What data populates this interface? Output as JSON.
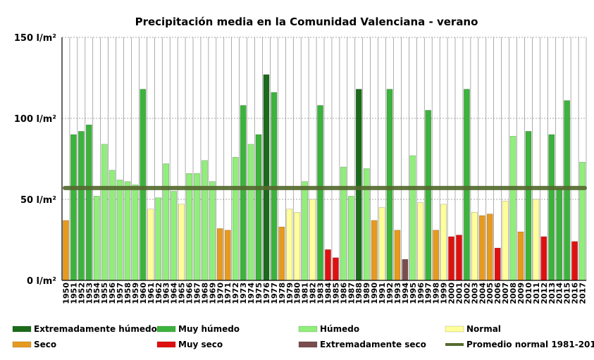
{
  "chart_data": {
    "type": "bar",
    "title": "Precipitación media en la Comunidad Valenciana - verano",
    "xlabel": "",
    "ylabel": "",
    "ylim": [
      0,
      150
    ],
    "y_ticks": [
      {
        "value": 0,
        "label": "0 l/m²"
      },
      {
        "value": 50,
        "label": "50 l/m²"
      },
      {
        "value": 100,
        "label": "100 l/m²"
      },
      {
        "value": 150,
        "label": "150 l/m²"
      }
    ],
    "grid": true,
    "legend_position": "bottom",
    "reference_line": {
      "name": "Promedio normal 1981-2010",
      "value": 57,
      "color": "#556b2f"
    },
    "category_colors": {
      "EH": "#1b6b1b",
      "MH": "#3cb33c",
      "H": "#90ee7a",
      "N": "#ffff99",
      "S": "#e69a1e",
      "MS": "#e01010",
      "ES": "#7a4e4e"
    },
    "legend": [
      {
        "key": "EH",
        "label": "Extremadamente húmedo"
      },
      {
        "key": "MH",
        "label": "Muy húmedo"
      },
      {
        "key": "H",
        "label": "Húmedo"
      },
      {
        "key": "N",
        "label": "Normal"
      },
      {
        "key": "S",
        "label": "Seco"
      },
      {
        "key": "MS",
        "label": "Muy seco"
      },
      {
        "key": "ES",
        "label": "Extremadamente seco"
      },
      {
        "key": "LINE",
        "label": "Promedio normal 1981-2010"
      }
    ],
    "categories": [
      "1950",
      "1951",
      "1952",
      "1953",
      "1954",
      "1955",
      "1956",
      "1957",
      "1958",
      "1959",
      "1960",
      "1961",
      "1962",
      "1963",
      "1964",
      "1965",
      "1966",
      "1967",
      "1968",
      "1969",
      "1970",
      "1971",
      "1972",
      "1973",
      "1974",
      "1975",
      "1976",
      "1977",
      "1978",
      "1979",
      "1980",
      "1981",
      "1982",
      "1983",
      "1984",
      "1985",
      "1986",
      "1987",
      "1988",
      "1989",
      "1990",
      "1991",
      "1992",
      "1993",
      "1994",
      "1995",
      "1996",
      "1997",
      "1998",
      "1999",
      "2000",
      "2001",
      "2002",
      "2003",
      "2004",
      "2005",
      "2006",
      "2007",
      "2008",
      "2009",
      "2010",
      "2011",
      "2012",
      "2013",
      "2014",
      "2015",
      "2016",
      "2017"
    ],
    "values": [
      37,
      90,
      92,
      96,
      52,
      84,
      68,
      62,
      61,
      59,
      118,
      44,
      51,
      72,
      55,
      47,
      66,
      66,
      74,
      61,
      32,
      31,
      76,
      108,
      84,
      90,
      127,
      116,
      33,
      44,
      42,
      61,
      50,
      108,
      19,
      14,
      70,
      52,
      118,
      69,
      37,
      45,
      118,
      31,
      13,
      77,
      48,
      105,
      31,
      47,
      27,
      28,
      118,
      42,
      40,
      41,
      20,
      49,
      89,
      30,
      92,
      50,
      27,
      90,
      57,
      111,
      24,
      73
    ],
    "classes": [
      "S",
      "MH",
      "MH",
      "MH",
      "H",
      "H",
      "H",
      "H",
      "H",
      "H",
      "MH",
      "N",
      "H",
      "H",
      "H",
      "N",
      "H",
      "H",
      "H",
      "H",
      "S",
      "S",
      "H",
      "MH",
      "H",
      "MH",
      "EH",
      "MH",
      "S",
      "N",
      "N",
      "H",
      "N",
      "MH",
      "MS",
      "MS",
      "H",
      "H",
      "EH",
      "H",
      "S",
      "N",
      "MH",
      "S",
      "ES",
      "H",
      "N",
      "MH",
      "S",
      "N",
      "MS",
      "MS",
      "MH",
      "N",
      "S",
      "S",
      "MS",
      "N",
      "H",
      "S",
      "MH",
      "N",
      "MS",
      "MH",
      "MH",
      "MH",
      "MS",
      "H"
    ]
  }
}
